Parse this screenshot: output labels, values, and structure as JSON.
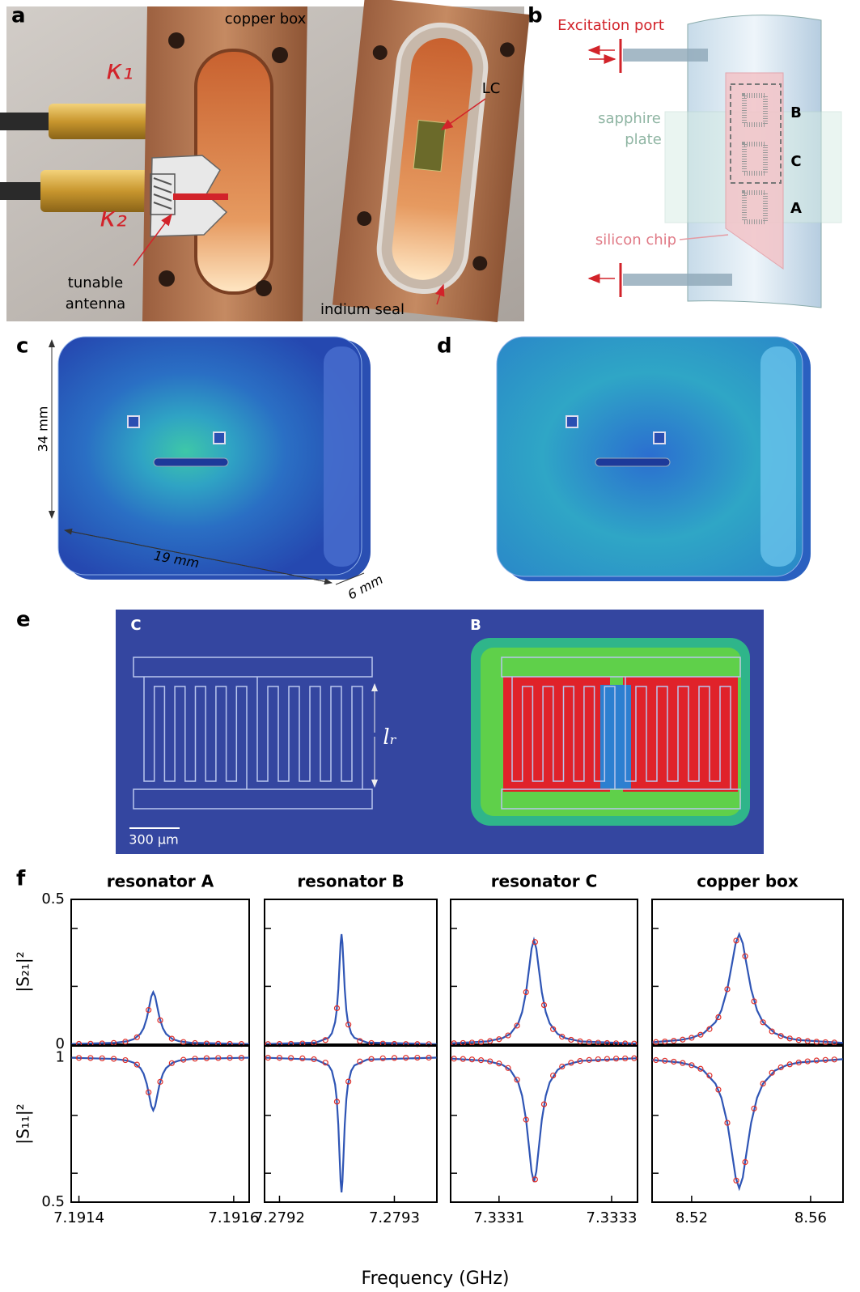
{
  "labels": [
    "a",
    "b",
    "c",
    "d",
    "e",
    "f"
  ],
  "panel_a": {
    "copper_box": "copper box",
    "kappa1": "κ₁",
    "kappa2": "κ₂",
    "lc": "LC",
    "antenna": [
      "tunable",
      "antenna"
    ],
    "indium_seal": "indium seal"
  },
  "panel_b": {
    "port": "Excitation port",
    "sapphire": [
      "sapphire",
      "plate"
    ],
    "resonators": [
      "B",
      "C",
      "A"
    ],
    "chip": "silicon chip"
  },
  "panel_c": {
    "height": "34 mm",
    "length": "19 mm",
    "depth": "6 mm"
  },
  "panel_e": {
    "left": "C",
    "right": "B",
    "length": "lᵣ",
    "scale": "300 μm"
  },
  "chart_data": {
    "type": "line",
    "xlabel": "Frequency (GHz)",
    "ylabels": [
      "|S₂₁|²",
      "|S₁₁|²"
    ],
    "s21_ylim": [
      0,
      0.5
    ],
    "s21_yticks": [
      0,
      0.5
    ],
    "s21_tick_marks": [
      0.2,
      0.4
    ],
    "s11_ylim": [
      0.5,
      1.04
    ],
    "s11_yticks": [
      0.5,
      1
    ],
    "s11_tick_marks": [
      0.6,
      0.8
    ],
    "fit_color": "#2f55b5",
    "point_color": "#e0302a",
    "panels": [
      {
        "title": "resonator A",
        "xlim": [
          7.19139,
          7.19162
        ],
        "xticks": [
          7.1914,
          7.1916
        ],
        "fit_x": [
          7.1913906,
          7.1914462,
          7.1914628,
          7.1914711,
          7.1914794,
          7.1914836,
          7.1914877,
          7.191491,
          7.1914935,
          7.191496,
          7.1914985,
          7.191501,
          7.1915043,
          7.1915085,
          7.1915126,
          7.1915209,
          7.1915292,
          7.1915458,
          7.1916197
        ],
        "fit_s21": [
          0.0011,
          0.0049,
          0.0106,
          0.018,
          0.036,
          0.0554,
          0.09,
          0.1323,
          0.165,
          0.18,
          0.165,
          0.1323,
          0.09,
          0.0554,
          0.036,
          0.018,
          0.0106,
          0.0049,
          0.0008
        ],
        "fit_s11": [
          0.9989,
          0.9951,
          0.9892,
          0.9817,
          0.9634,
          0.9436,
          0.9085,
          0.8655,
          0.8322,
          0.817,
          0.8322,
          0.8655,
          0.9085,
          0.9436,
          0.9634,
          0.9817,
          0.9892,
          0.9951,
          0.9992
        ],
        "points_x": [
          7.1914,
          7.191415,
          7.19143,
          7.191445,
          7.19146,
          7.191475,
          7.19149,
          7.191505,
          7.19152,
          7.191535,
          7.19155,
          7.191565,
          7.19158,
          7.191595,
          7.19161
        ],
        "points_s21": [
          0.0013,
          0.0019,
          0.0028,
          0.0046,
          0.0091,
          0.0243,
          0.1184,
          0.0828,
          0.0193,
          0.0078,
          0.0042,
          0.0026,
          0.0017,
          0.0013,
          0.001
        ],
        "points_s11": [
          0.9986,
          0.9981,
          0.9971,
          0.9953,
          0.9908,
          0.9753,
          0.8796,
          0.9158,
          0.9804,
          0.9921,
          0.9958,
          0.9974,
          0.9982,
          0.9987,
          0.999
        ]
      },
      {
        "title": "resonator B",
        "xlim": [
          7.279187,
          7.279337
        ],
        "xticks": [
          7.2792,
          7.2793
        ],
        "fit_x": [
          7.2791874,
          7.2792316,
          7.2792428,
          7.2792456,
          7.2792484,
          7.2792498,
          7.2792512,
          7.2792523,
          7.2792532,
          7.279254,
          7.2792548,
          7.2792557,
          7.2792568,
          7.2792582,
          7.2792596,
          7.2792624,
          7.2792652,
          7.2792764,
          7.2793366
        ],
        "fit_s21": [
          0.0007,
          0.0059,
          0.0223,
          0.038,
          0.076,
          0.117,
          0.19,
          0.2793,
          0.3485,
          0.38,
          0.3485,
          0.2793,
          0.19,
          0.117,
          0.076,
          0.038,
          0.0223,
          0.0059,
          0.0004
        ],
        "fit_s11": [
          0.9992,
          0.9928,
          0.9726,
          0.9534,
          0.9068,
          0.8565,
          0.767,
          0.6575,
          0.5727,
          0.534,
          0.5727,
          0.6575,
          0.767,
          0.8565,
          0.9068,
          0.9534,
          0.9726,
          0.9928,
          0.9995
        ],
        "points_x": [
          7.27919,
          7.2792,
          7.27921,
          7.27922,
          7.27923,
          7.27924,
          7.27925,
          7.27926,
          7.27927,
          7.27928,
          7.27929,
          7.2793,
          7.27931,
          7.27932,
          7.27933
        ],
        "points_s21": [
          0.0007,
          0.001,
          0.0015,
          0.0026,
          0.0051,
          0.0146,
          0.1246,
          0.068,
          0.0113,
          0.0044,
          0.0023,
          0.0014,
          0.0009,
          0.0007,
          0.0005
        ],
        "points_s11": [
          0.9991,
          0.9987,
          0.9981,
          0.9969,
          0.9938,
          0.9821,
          0.8472,
          0.9166,
          0.9861,
          0.9946,
          0.9972,
          0.9983,
          0.9988,
          0.9992,
          0.9994
        ]
      },
      {
        "title": "resonator C",
        "xlim": [
          7.333014,
          7.333346
        ],
        "xticks": [
          7.3331,
          7.3333
        ],
        "fit_x": [
          7.333015,
          7.333078,
          7.333106,
          7.33312,
          7.333134,
          7.333141,
          7.333148,
          7.3331536,
          7.3331578,
          7.333162,
          7.3331662,
          7.3331704,
          7.333176,
          7.333183,
          7.33319,
          7.333204,
          7.333218,
          7.333246,
          7.3333454
        ],
        "fit_s21": [
          0.0032,
          0.0097,
          0.0212,
          0.036,
          0.072,
          0.1109,
          0.18,
          0.2646,
          0.3301,
          0.36,
          0.3301,
          0.2646,
          0.18,
          0.1109,
          0.072,
          0.036,
          0.0212,
          0.0097,
          0.0021
        ],
        "fit_s11": [
          0.9961,
          0.9884,
          0.9747,
          0.957,
          0.914,
          0.8676,
          0.785,
          0.684,
          0.6057,
          0.57,
          0.6057,
          0.684,
          0.785,
          0.8676,
          0.914,
          0.957,
          0.9747,
          0.9884,
          0.9975
        ],
        "points_x": [
          7.33302,
          7.333036,
          7.333052,
          7.333068,
          7.333084,
          7.3331,
          7.333116,
          7.333132,
          7.333148,
          7.333164,
          7.33318,
          7.333196,
          7.333212,
          7.333228,
          7.333244,
          7.33326,
          7.333276,
          7.333292,
          7.333308,
          7.333324,
          7.33334
        ],
        "points_s21": [
          0.0035,
          0.0044,
          0.0057,
          0.0078,
          0.0112,
          0.0175,
          0.0305,
          0.0644,
          0.18,
          0.3528,
          0.1354,
          0.0522,
          0.0262,
          0.0155,
          0.0102,
          0.0072,
          0.0054,
          0.0041,
          0.0033,
          0.0027,
          0.0022
        ],
        "points_s11": [
          0.9959,
          0.9948,
          0.9932,
          0.9907,
          0.9866,
          0.9791,
          0.9636,
          0.923,
          0.785,
          0.5786,
          0.8383,
          0.9377,
          0.9687,
          0.9815,
          0.9878,
          0.9914,
          0.9936,
          0.9951,
          0.9961,
          0.9968,
          0.9973
        ]
      },
      {
        "title": "copper box",
        "xlim": [
          8.5067,
          8.5709
        ],
        "xticks": [
          8.52,
          8.56
        ],
        "fit_x": [
          8.5068,
          8.516,
          8.52,
          8.524,
          8.528,
          8.53,
          8.532,
          8.5336,
          8.5348,
          8.536,
          8.5372,
          8.5384,
          8.54,
          8.542,
          8.544,
          8.548,
          8.552,
          8.556,
          8.5708
        ],
        "fit_s21": [
          0.007,
          0.0146,
          0.0223,
          0.038,
          0.076,
          0.117,
          0.19,
          0.2793,
          0.3485,
          0.38,
          0.3485,
          0.2793,
          0.19,
          0.117,
          0.076,
          0.038,
          0.0223,
          0.0146,
          0.0049
        ],
        "fit_s11": [
          0.9917,
          0.9826,
          0.9734,
          0.9548,
          0.9096,
          0.8608,
          0.774,
          0.6678,
          0.5855,
          0.548,
          0.5855,
          0.6678,
          0.774,
          0.8608,
          0.9096,
          0.9548,
          0.9734,
          0.9826,
          0.9941
        ],
        "points_x": [
          8.508,
          8.511,
          8.514,
          8.517,
          8.52,
          8.523,
          8.526,
          8.529,
          8.532,
          8.535,
          8.538,
          8.541,
          8.544,
          8.547,
          8.55,
          8.553,
          8.556,
          8.559,
          8.562,
          8.565,
          8.568
        ],
        "points_s21": [
          0.0076,
          0.0095,
          0.0122,
          0.0161,
          0.0223,
          0.0329,
          0.0524,
          0.0935,
          0.19,
          0.3576,
          0.304,
          0.1482,
          0.076,
          0.0445,
          0.0287,
          0.02,
          0.0146,
          0.0112,
          0.0088,
          0.0071,
          0.0059
        ],
        "points_s11": [
          0.991,
          0.9887,
          0.9855,
          0.9808,
          0.9734,
          0.9609,
          0.9376,
          0.8888,
          0.774,
          0.5747,
          0.6384,
          0.8237,
          0.9096,
          0.9471,
          0.9659,
          0.9763,
          0.9826,
          0.9867,
          0.9896,
          0.9915,
          0.993
        ]
      }
    ]
  }
}
